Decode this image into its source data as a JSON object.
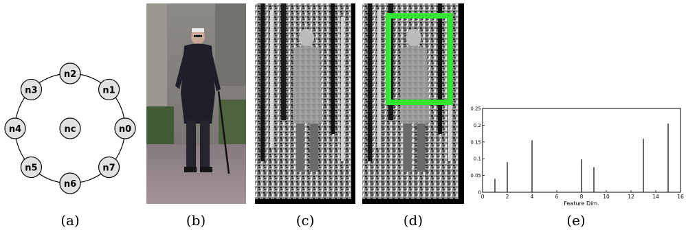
{
  "diagram": {
    "nodes": [
      {
        "id": "n0",
        "label": "n0"
      },
      {
        "id": "n1",
        "label": "n1"
      },
      {
        "id": "n2",
        "label": "n2"
      },
      {
        "id": "n3",
        "label": "n3"
      },
      {
        "id": "n4",
        "label": "n4"
      },
      {
        "id": "n5",
        "label": "n5"
      },
      {
        "id": "n6",
        "label": "n6"
      },
      {
        "id": "n7",
        "label": "n7"
      },
      {
        "id": "nc",
        "label": "nc"
      }
    ]
  },
  "images": {
    "photo_description": "pedestrian photo (elderly man with cane)",
    "detection_box_color": "#33e633"
  },
  "chart_data": {
    "type": "bar",
    "title": "",
    "xlabel": "Feature Dim.",
    "ylabel": "",
    "xlim": [
      0,
      16
    ],
    "ylim": [
      0,
      0.25
    ],
    "xticks": [
      "0",
      "2",
      "4",
      "6",
      "8",
      "10",
      "12",
      "14",
      "16"
    ],
    "yticks": [
      "0",
      "0.05",
      "0.1",
      "0.15",
      "0.2",
      "0.25"
    ],
    "x": [
      1,
      2,
      4,
      8,
      9,
      13,
      15
    ],
    "values": [
      0.04,
      0.09,
      0.155,
      0.098,
      0.075,
      0.16,
      0.205
    ]
  },
  "captions": {
    "a": "(a)",
    "b": "(b)",
    "c": "(c)",
    "d": "(d)",
    "e": "(e)"
  }
}
